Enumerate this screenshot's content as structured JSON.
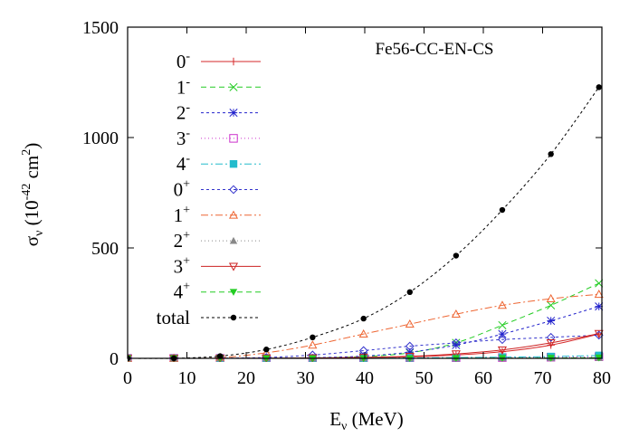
{
  "chart_data": {
    "type": "line",
    "title": "Fe56-CC-EN-CS",
    "xlabel": {
      "symbol": "E",
      "subscript": "ν",
      "unit": "(MeV)"
    },
    "ylabel": {
      "symbol": "σ",
      "subscript": "ν",
      "open": "(10",
      "exp": "-42",
      "mid": " cm",
      "exp2": "2",
      "close": ")"
    },
    "xlim": [
      0,
      80
    ],
    "ylim": [
      0,
      1500
    ],
    "xticks": [
      "0",
      "10",
      "20",
      "30",
      "40",
      "50",
      "60",
      "70",
      "80"
    ],
    "yticks": [
      "0",
      "500",
      "1000",
      "1500"
    ],
    "x": [
      0,
      7.8,
      15.6,
      23.4,
      31.2,
      39.8,
      47.6,
      55.4,
      63.2,
      71.4,
      79.5
    ],
    "series": [
      {
        "name": "0",
        "sup": "-",
        "color": "#d62728",
        "marker": "plus",
        "dash": "none",
        "values": [
          0,
          0,
          0,
          0.5,
          1.5,
          3.5,
          7,
          15,
          30,
          60,
          110
        ]
      },
      {
        "name": "1",
        "sup": "-",
        "color": "#22cc22",
        "marker": "cross",
        "dash": "6,4",
        "values": [
          0,
          0,
          0,
          0.3,
          2,
          8,
          25,
          70,
          150,
          240,
          340
        ]
      },
      {
        "name": "2",
        "sup": "-",
        "color": "#2222cc",
        "marker": "star",
        "dash": "3,3",
        "values": [
          0,
          0,
          0,
          0.5,
          3,
          10,
          28,
          60,
          110,
          170,
          235
        ]
      },
      {
        "name": "3",
        "sup": "-",
        "color": "#cc33cc",
        "marker": "square",
        "dash": "1,3",
        "values": [
          0,
          0,
          0,
          0,
          0,
          0.5,
          1,
          2,
          3.5,
          5,
          7
        ]
      },
      {
        "name": "4",
        "sup": "-",
        "color": "#22bbcc",
        "marker": "filled-square",
        "dash": "8,3,2,3",
        "values": [
          0,
          0,
          0,
          0.1,
          0.5,
          1,
          2,
          3.5,
          5.5,
          8,
          13
        ]
      },
      {
        "name": "0",
        "sup": "+",
        "color": "#3333cc",
        "marker": "diamond",
        "dash": "3,3",
        "values": [
          0,
          0,
          0.5,
          4,
          15,
          35,
          55,
          70,
          85,
          95,
          105
        ]
      },
      {
        "name": "1",
        "sup": "+",
        "color": "#ee6633",
        "marker": "triangle",
        "dash": "8,3,2,3",
        "values": [
          0,
          0,
          3,
          25,
          60,
          110,
          155,
          200,
          240,
          270,
          290
        ]
      },
      {
        "name": "2",
        "sup": "+",
        "color": "#888888",
        "marker": "filled-triangle",
        "dash": "1,3",
        "values": [
          0,
          0,
          0,
          0,
          0,
          0.2,
          0.3,
          0.5,
          0.8,
          1,
          1.5
        ]
      },
      {
        "name": "3",
        "sup": "+",
        "color": "#cc2222",
        "marker": "inv-triangle",
        "dash": "none",
        "values": [
          0,
          0,
          0,
          0.5,
          1.5,
          4,
          9,
          20,
          38,
          70,
          112
        ]
      },
      {
        "name": "4",
        "sup": "+",
        "color": "#22cc22",
        "marker": "filled-inv-triangle",
        "dash": "6,4",
        "values": [
          0,
          0,
          0,
          0,
          0,
          0,
          0,
          0.5,
          1,
          1.5,
          3
        ]
      },
      {
        "name": "total",
        "sup": "",
        "color": "#000000",
        "marker": "filled-circle",
        "dash": "3,3",
        "values": [
          0,
          0,
          10,
          40,
          95,
          180,
          300,
          465,
          672,
          925,
          1228
        ]
      }
    ]
  }
}
